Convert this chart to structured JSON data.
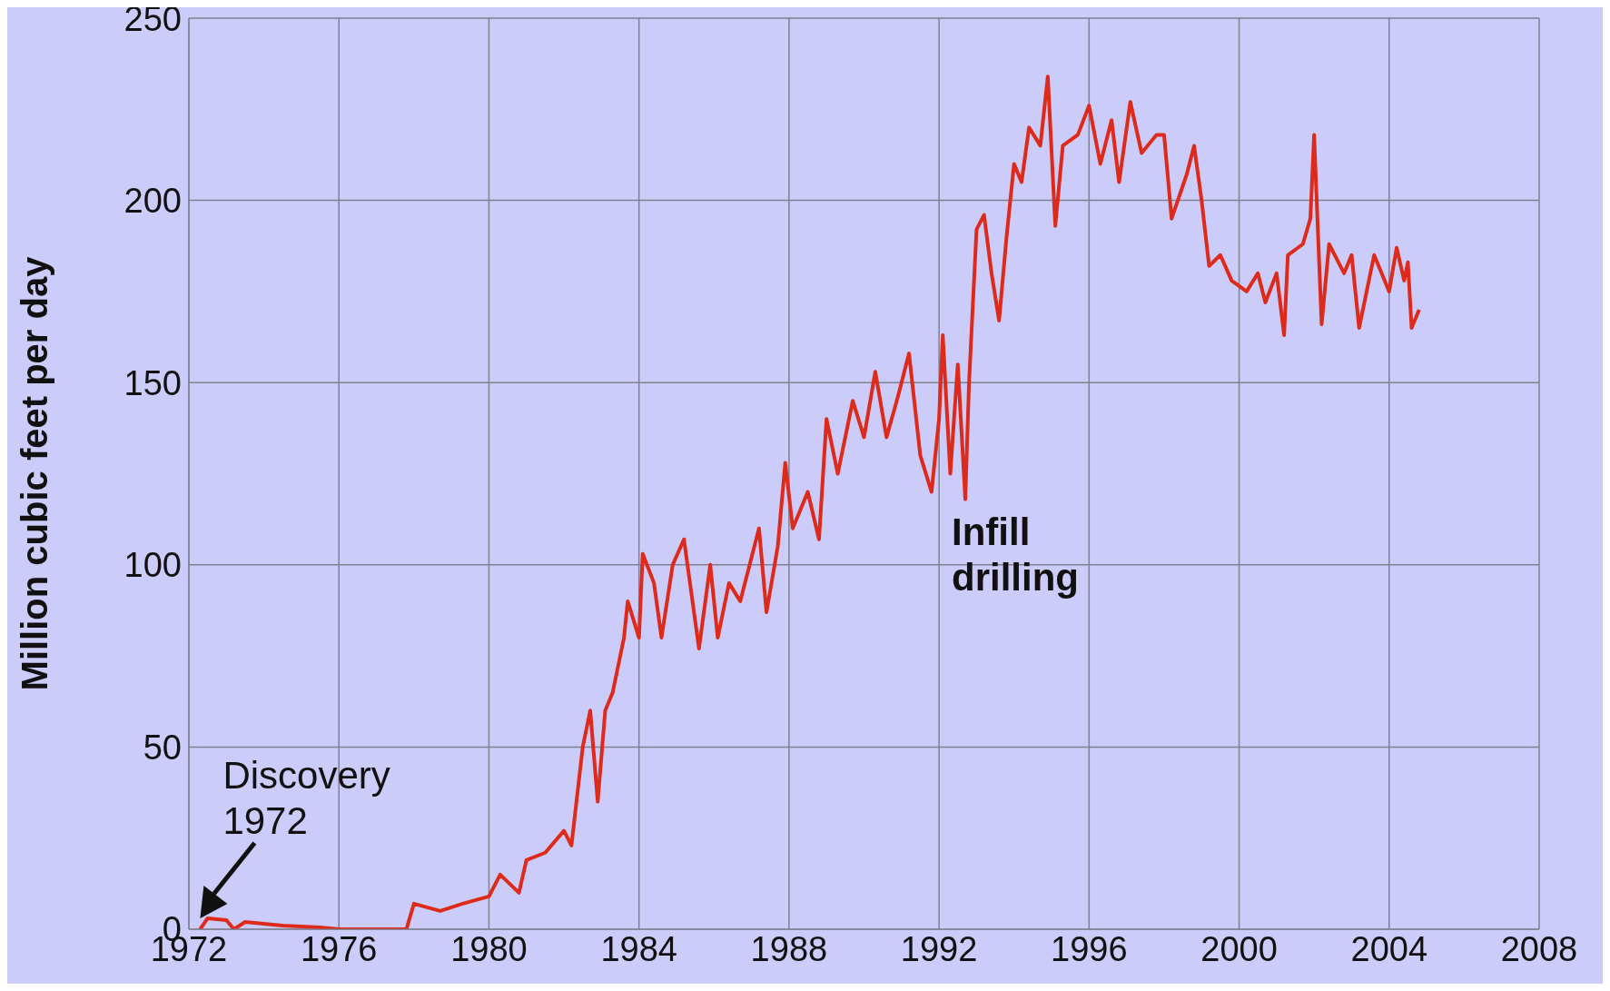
{
  "chart_data": {
    "type": "line",
    "ylabel": "Million cubic feet per day",
    "xlim": [
      1972,
      2008
    ],
    "xticks": [
      1972,
      1976,
      1980,
      1984,
      1988,
      1992,
      1996,
      2000,
      2004,
      2008
    ],
    "ylim": [
      0,
      250
    ],
    "yticks": [
      0,
      50,
      100,
      150,
      200,
      250
    ],
    "grid": true,
    "marker": "none",
    "line_style": "solid",
    "annotations": [
      {
        "text": "Discovery\n1972",
        "x": 1972.3,
        "y": 0
      },
      {
        "text": "Infill\ndrilling",
        "x": 1992.7,
        "y": 118
      }
    ],
    "series": [
      {
        "color": "#dd2a1a",
        "x": [
          1972.3,
          1972.5,
          1973.0,
          1973.2,
          1973.5,
          1974.5,
          1975.5,
          1976.0,
          1977.8,
          1978.0,
          1978.7,
          1979.3,
          1980.0,
          1980.3,
          1980.8,
          1981.0,
          1981.5,
          1982.0,
          1982.2,
          1982.5,
          1982.7,
          1982.9,
          1983.1,
          1983.3,
          1983.6,
          1983.7,
          1984.0,
          1984.1,
          1984.4,
          1984.6,
          1984.9,
          1985.2,
          1985.6,
          1985.9,
          1986.1,
          1986.4,
          1986.7,
          1987.2,
          1987.4,
          1987.7,
          1987.9,
          1988.1,
          1988.5,
          1988.8,
          1989.0,
          1989.3,
          1989.7,
          1990.0,
          1990.3,
          1990.6,
          1990.9,
          1991.2,
          1991.5,
          1991.8,
          1992.0,
          1992.1,
          1992.3,
          1992.5,
          1992.7,
          1992.8,
          1993.0,
          1993.2,
          1993.4,
          1993.6,
          1993.8,
          1994.0,
          1994.2,
          1994.4,
          1994.7,
          1994.9,
          1995.1,
          1995.3,
          1995.7,
          1996.0,
          1996.3,
          1996.6,
          1996.8,
          1997.1,
          1997.4,
          1997.8,
          1998.0,
          1998.2,
          1998.6,
          1998.8,
          1999.0,
          1999.2,
          1999.5,
          1999.8,
          2000.2,
          2000.5,
          2000.7,
          2001.0,
          2001.2,
          2001.3,
          2001.7,
          2001.9,
          2002.0,
          2002.2,
          2002.4,
          2002.8,
          2003.0,
          2003.2,
          2003.6,
          2004.0,
          2004.2,
          2004.4,
          2004.5,
          2004.6,
          2004.8
        ],
        "values": [
          0,
          3,
          2.5,
          0,
          2,
          1,
          0.5,
          0,
          0,
          7,
          5,
          7,
          9,
          15,
          10,
          19,
          21,
          27,
          23,
          50,
          60,
          35,
          60,
          65,
          80,
          90,
          80,
          103,
          95,
          80,
          100,
          107,
          77,
          100,
          80,
          95,
          90,
          110,
          87,
          105,
          128,
          110,
          120,
          107,
          140,
          125,
          145,
          135,
          153,
          135,
          146,
          158,
          130,
          120,
          140,
          163,
          125,
          155,
          118,
          150,
          192,
          196,
          180,
          167,
          190,
          210,
          205,
          220,
          215,
          234,
          193,
          215,
          218,
          226,
          210,
          222,
          205,
          227,
          213,
          218,
          218,
          195,
          207,
          215,
          200,
          182,
          185,
          178,
          175,
          180,
          172,
          180,
          163,
          185,
          188,
          195,
          218,
          166,
          188,
          180,
          185,
          165,
          185,
          175,
          187,
          178,
          183,
          165,
          170
        ]
      }
    ]
  }
}
